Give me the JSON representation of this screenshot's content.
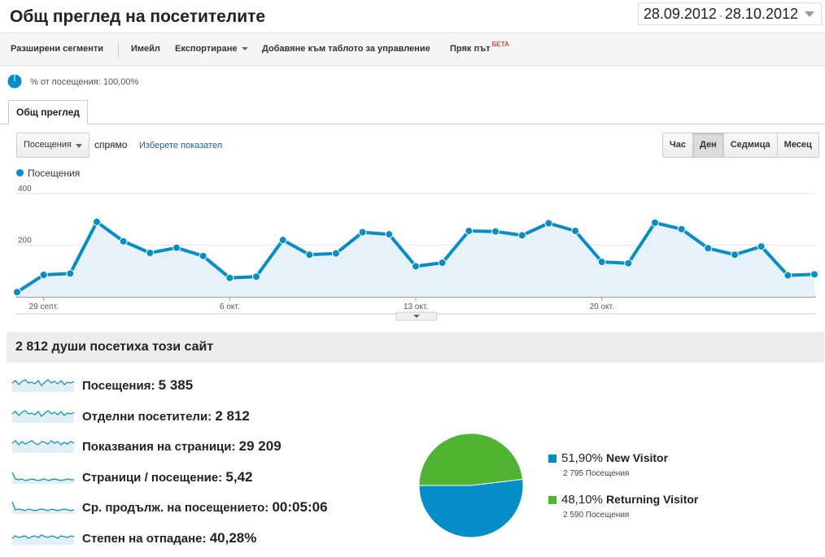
{
  "header": {
    "title": "Общ преглед на посетителите",
    "date_start": "28.09.2012",
    "date_sep": "-",
    "date_end": "28.10.2012"
  },
  "toolbar": {
    "advanced_segments": "Разширени сегменти",
    "email": "Имейл",
    "export": "Експортиране",
    "add_to_dashboard": "Добавяне към таблото за управление",
    "shortcut": "Пряк път",
    "beta": "БЕТА"
  },
  "segment": {
    "label": "% от посещения: 100,00%",
    "fraction": 1.0
  },
  "tabs": [
    {
      "label": "Общ преглед"
    }
  ],
  "controls": {
    "metric": "Посещения",
    "vs": "спрямо",
    "choose_metric": "Изберете показател",
    "periods": [
      "Час",
      "Ден",
      "Седмица",
      "Месец"
    ],
    "active_period": "Ден"
  },
  "colors": {
    "series": "#058dc7",
    "area": "#e6f2f8",
    "new_visitor": "#058dc7",
    "returning_visitor": "#50b432"
  },
  "chart_data": {
    "type": "area",
    "series": [
      {
        "name": "Посещения",
        "values": [
          18,
          85,
          90,
          290,
          215,
          170,
          190,
          158,
          73,
          78,
          220,
          163,
          168,
          250,
          242,
          118,
          132,
          255,
          253,
          238,
          285,
          255,
          135,
          130,
          287,
          262,
          188,
          163,
          195,
          83,
          87
        ]
      }
    ],
    "x_tick_labels": [
      {
        "label": "29 септ.",
        "index": 1
      },
      {
        "label": "6 окт.",
        "index": 8
      },
      {
        "label": "13 окт.",
        "index": 15
      },
      {
        "label": "20 окт.",
        "index": 22
      }
    ],
    "y_ticks": [
      200,
      400
    ],
    "ylim": [
      0,
      400
    ],
    "grid": true
  },
  "summary": {
    "title": "2 812 души посетиха този сайт",
    "stats": [
      {
        "label": "Посещения:",
        "value": "5 385"
      },
      {
        "label": "Отделни посетители:",
        "value": "2 812"
      },
      {
        "label": "Показвания на страници:",
        "value": "29 209"
      },
      {
        "label": "Страници / посещение:",
        "value": "5,42"
      },
      {
        "label": "Ср. продълж. на посещението:",
        "value": "00:05:06"
      },
      {
        "label": "Степен на отпадане:",
        "value": "40,28%"
      }
    ]
  },
  "pie": {
    "slices": [
      {
        "name": "New Visitor",
        "pct_label": "51,90%",
        "value": 51.9,
        "sub": "2 795 Посещения"
      },
      {
        "name": "Returning Visitor",
        "pct_label": "48,10%",
        "value": 48.1,
        "sub": "2 590 Посещения"
      }
    ]
  }
}
